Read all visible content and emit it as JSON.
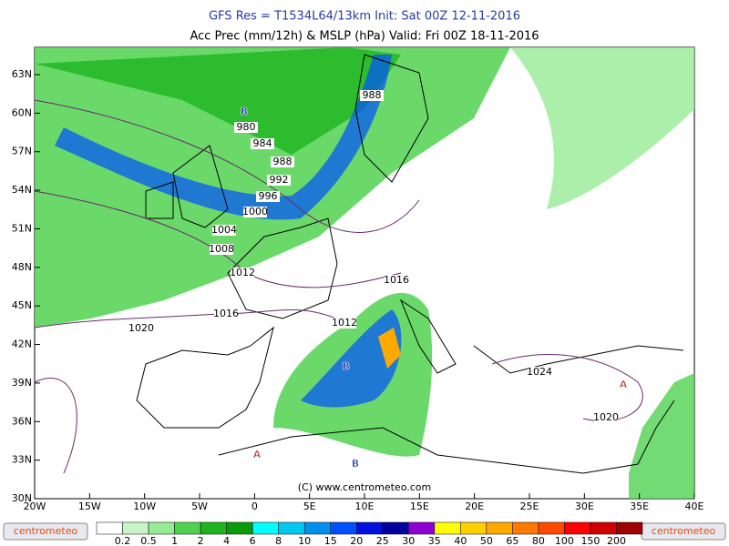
{
  "header": {
    "line1": "GFS Res = T1534L64/13km   Init: Sat 00Z 12-11-2016",
    "line2": "Acc Prec (mm/12h) & MSLP (hPa)  Valid: Fri 00Z 18-11-2016"
  },
  "lat_labels": [
    "63N",
    "60N",
    "57N",
    "54N",
    "51N",
    "48N",
    "45N",
    "42N",
    "39N",
    "36N",
    "33N",
    "30N"
  ],
  "lon_labels": [
    "20W",
    "15W",
    "10W",
    "5W",
    "0",
    "5E",
    "10E",
    "15E",
    "20E",
    "25E",
    "30E",
    "35E",
    "40E"
  ],
  "isobar_labels": [
    "988",
    "980",
    "984",
    "988",
    "992",
    "996",
    "1000",
    "1004",
    "1008",
    "1012",
    "1016",
    "1012",
    "1016",
    "1020",
    "1024",
    "1020"
  ],
  "pressure_centers": [
    {
      "label": "B",
      "color": "#1a2aa0"
    },
    {
      "label": "B",
      "color": "#1a2aa0"
    },
    {
      "label": "B",
      "color": "#1a2aa0"
    },
    {
      "label": "A",
      "color": "#c0302a"
    },
    {
      "label": "A",
      "color": "#c0302a"
    }
  ],
  "copyright": "(C) www.centrometeo.com",
  "logo": "centrometeo",
  "colorbar": {
    "labels": [
      "0.2",
      "0.5",
      "1",
      "2",
      "4",
      "6",
      "8",
      "10",
      "15",
      "20",
      "25",
      "30",
      "35",
      "40",
      "50",
      "65",
      "80",
      "100",
      "150",
      "200"
    ],
    "colors": [
      "#ffffff",
      "#c8f5c8",
      "#96eb96",
      "#50d250",
      "#1eb41e",
      "#0a9a0a",
      "#00ffff",
      "#00c8f0",
      "#0090f0",
      "#0050ff",
      "#0010e0",
      "#0000a0",
      "#9000d0",
      "#ffff00",
      "#ffd000",
      "#ffa800",
      "#ff7800",
      "#ff4800",
      "#ff0000",
      "#d00000",
      "#a00000"
    ]
  }
}
